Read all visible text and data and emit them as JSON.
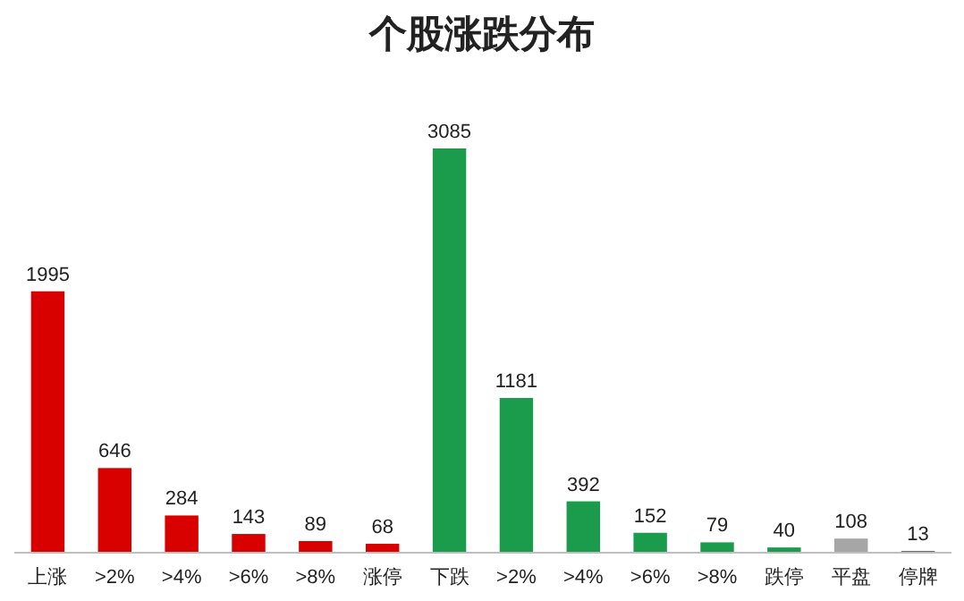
{
  "chart_data": {
    "type": "bar",
    "title": "个股涨跌分布",
    "categories": [
      "上涨",
      ">2%",
      ">4%",
      ">6%",
      ">8%",
      "涨停",
      "下跌",
      ">2%",
      ">4%",
      ">6%",
      ">8%",
      "跌停",
      "平盘",
      "停牌"
    ],
    "values": [
      1995,
      646,
      284,
      143,
      89,
      68,
      3085,
      1181,
      392,
      152,
      79,
      40,
      108,
      13
    ],
    "colors": [
      "#d90000",
      "#d90000",
      "#d90000",
      "#d90000",
      "#d90000",
      "#d90000",
      "#1a9c4c",
      "#1a9c4c",
      "#1a9c4c",
      "#1a9c4c",
      "#1a9c4c",
      "#1a9c4c",
      "#a6a6a6",
      "#595959"
    ],
    "data_labels": true
  }
}
